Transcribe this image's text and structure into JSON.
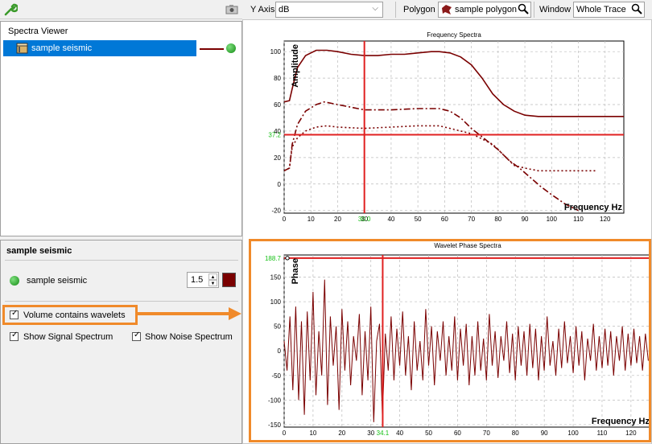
{
  "tree": {
    "header": "Spectra Viewer",
    "item_label": "sample seismic"
  },
  "props": {
    "title": "sample seismic",
    "layer_name": "sample seismic",
    "line_width": "1.5",
    "line_color": "#7a0000",
    "checkbox_wavelets": "Volume contains wavelets",
    "checkbox_signal": "Show Signal Spectrum",
    "checkbox_noise": "Show Noise Spectrum",
    "highlight_color": "#f08a2a"
  },
  "toolbar": {
    "y_axis_label": "Y Axis",
    "y_axis_value": "dB",
    "polygon_label": "Polygon",
    "polygon_value": "sample polygon",
    "window_label": "Window",
    "window_value": "Whole Trace"
  },
  "chart_data": [
    {
      "type": "line",
      "title": "Frequency Spectra",
      "xlabel": "Frequency Hz",
      "ylabel": "Amplitude",
      "xlim": [
        0,
        127
      ],
      "ylim": [
        -22,
        108
      ],
      "xticks": [
        0,
        10,
        20,
        30,
        40,
        50,
        60,
        70,
        80,
        90,
        100,
        110,
        120
      ],
      "yticks": [
        -20,
        0,
        20,
        40,
        60,
        80,
        100
      ],
      "cursor": {
        "x": 30.0,
        "y": 37.2,
        "x_label": "30.0",
        "y_label": "37.2"
      },
      "grid": true,
      "series": [
        {
          "style": "solid",
          "x": [
            0,
            2,
            3,
            5,
            8,
            12,
            16,
            20,
            25,
            30,
            35,
            40,
            45,
            50,
            55,
            58,
            62,
            66,
            70,
            74,
            78,
            82,
            86,
            90,
            95,
            100,
            110,
            120,
            127
          ],
          "y": [
            62,
            63,
            72,
            88,
            97,
            101,
            101,
            100,
            98,
            97,
            97,
            98,
            98,
            99,
            100,
            100,
            99,
            96,
            90,
            80,
            68,
            60,
            55,
            52,
            51,
            51,
            51,
            51,
            51
          ]
        },
        {
          "style": "dashdot",
          "x": [
            0,
            2,
            3,
            5,
            8,
            12,
            15,
            20,
            25,
            30,
            40,
            50,
            58,
            62,
            66,
            70,
            75,
            80,
            84,
            88,
            92,
            96,
            100,
            105,
            110
          ],
          "y": [
            10,
            12,
            30,
            45,
            55,
            60,
            62,
            60,
            58,
            56,
            56,
            57,
            57,
            55,
            50,
            42,
            34,
            26,
            18,
            12,
            5,
            -2,
            -8,
            -15,
            -20
          ]
        },
        {
          "style": "dotted",
          "x": [
            0,
            2,
            3,
            5,
            8,
            12,
            16,
            20,
            30,
            40,
            50,
            58,
            62,
            66,
            70,
            74,
            78,
            82,
            86,
            90,
            95,
            100,
            105,
            110,
            117
          ],
          "y": [
            10,
            12,
            28,
            35,
            40,
            43,
            44,
            43,
            42,
            43,
            44,
            44,
            42,
            40,
            38,
            34,
            30,
            22,
            14,
            12,
            10,
            10,
            10,
            10,
            10
          ]
        }
      ]
    },
    {
      "type": "line",
      "title": "Wavelet Phase Spectra",
      "xlabel": "Frequency Hz",
      "ylabel": "Phase",
      "xlim": [
        0,
        127
      ],
      "ylim": [
        -155,
        195
      ],
      "xticks": [
        0,
        10,
        20,
        30,
        40,
        50,
        60,
        70,
        80,
        90,
        100,
        110,
        120
      ],
      "yticks": [
        -150,
        -100,
        -50,
        0,
        50,
        100,
        150
      ],
      "cursor": {
        "x": 34.1,
        "y": 188.7,
        "x_label": "34.1",
        "y_label": "188.7"
      },
      "grid": true,
      "series": [
        {
          "style": "solid",
          "x": [
            0,
            1,
            2,
            3,
            4,
            5,
            6,
            7,
            8,
            9,
            10,
            11,
            12,
            13,
            14,
            15,
            16,
            17,
            18,
            19,
            20,
            21,
            22,
            23,
            24,
            25,
            26,
            27,
            28,
            29,
            30,
            31,
            32,
            33,
            34,
            35,
            36,
            37,
            38,
            39,
            40,
            41,
            42,
            43,
            44,
            45,
            46,
            47,
            48,
            49,
            50,
            51,
            52,
            53,
            54,
            55,
            56,
            57,
            58,
            59,
            60,
            61,
            62,
            63,
            64,
            65,
            66,
            67,
            68,
            69,
            70,
            71,
            72,
            73,
            74,
            75,
            76,
            77,
            78,
            79,
            80,
            81,
            82,
            83,
            84,
            85,
            86,
            87,
            88,
            89,
            90,
            91,
            92,
            93,
            94,
            95,
            96,
            97,
            98,
            99,
            100,
            101,
            102,
            103,
            104,
            105,
            106,
            107,
            108,
            109,
            110,
            111,
            112,
            113,
            114,
            115,
            116,
            117,
            118,
            119,
            120,
            121,
            122,
            123,
            124,
            125,
            126
          ],
          "y": [
            20,
            -40,
            70,
            -80,
            90,
            -100,
            60,
            -130,
            80,
            -60,
            120,
            -90,
            40,
            -50,
            145,
            -110,
            70,
            -30,
            50,
            -120,
            85,
            -40,
            60,
            -70,
            30,
            -20,
            75,
            -90,
            40,
            -60,
            90,
            -145,
            20,
            55,
            -135,
            35,
            -40,
            70,
            -60,
            45,
            -30,
            80,
            -50,
            30,
            -80,
            60,
            -40,
            20,
            -60,
            85,
            -30,
            50,
            -70,
            40,
            -20,
            60,
            -50,
            30,
            -40,
            70,
            -60,
            45,
            -30,
            55,
            -70,
            30,
            -50,
            60,
            -40,
            25,
            -60,
            75,
            -30,
            40,
            -55,
            30,
            -20,
            60,
            -45,
            35,
            -60,
            50,
            -30,
            40,
            -50,
            55,
            -35,
            45,
            -60,
            30,
            -40,
            70,
            -30,
            20,
            -50,
            45,
            -35,
            60,
            -25,
            30,
            -45,
            50,
            -30,
            40,
            -60,
            25,
            -20,
            55,
            -40,
            30,
            -35,
            45,
            -30,
            40,
            -50,
            30,
            -20,
            50,
            -40,
            35,
            -30,
            45,
            -25,
            30,
            -40,
            35,
            -20
          ]
        }
      ]
    }
  ]
}
